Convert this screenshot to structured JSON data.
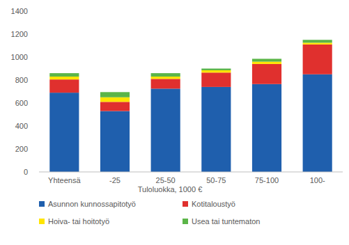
{
  "chart_data": {
    "type": "bar",
    "stacked": true,
    "x_label": "Tuloluokka, 1000 €",
    "categories": [
      "Yhteensä",
      "-25",
      "25-50",
      "50-75",
      "75-100",
      "100-"
    ],
    "series": [
      {
        "name": "Asunnon kunnossapitotyö",
        "color": "#1f5fad",
        "values": [
          690,
          530,
          725,
          740,
          765,
          850
        ]
      },
      {
        "name": "Kotitaloustyö",
        "color": "#e0302e",
        "values": [
          115,
          80,
          85,
          125,
          175,
          260
        ]
      },
      {
        "name": "Hoiva- tai hoitotyö",
        "color": "#ffe500",
        "values": [
          25,
          40,
          20,
          20,
          20,
          15
        ]
      },
      {
        "name": "Usea tai tuntematon",
        "color": "#5bb548",
        "values": [
          30,
          45,
          30,
          15,
          25,
          25
        ]
      }
    ],
    "ylim": [
      0,
      1400
    ],
    "yticks": [
      0,
      200,
      400,
      600,
      800,
      1000,
      1200,
      1400
    ],
    "grid": false,
    "legend": "bottom"
  }
}
